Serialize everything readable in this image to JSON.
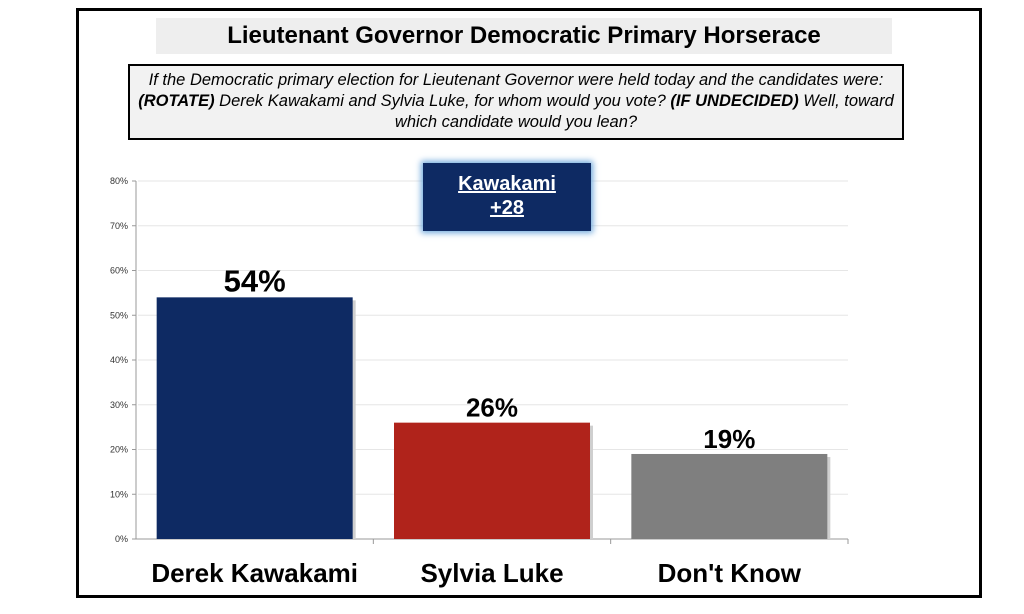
{
  "title": "Lieutenant Governor Democratic Primary Horserace",
  "question": {
    "part1": "If the Democratic primary election for Lieutenant Governor were held today and the candidates were: ",
    "rotate": "(ROTATE)",
    "part2": " Derek Kawakami and Sylvia Luke, for whom would you vote? ",
    "undecided": "(IF UNDECIDED)",
    "part3": " Well, toward which candidate would you lean?"
  },
  "lead_box": {
    "name": "Kawakami",
    "margin": "+28"
  },
  "chart_data": {
    "type": "bar",
    "categories": [
      "Derek Kawakami",
      "Sylvia Luke",
      "Don't Know"
    ],
    "values": [
      54,
      26,
      19
    ],
    "value_labels": [
      "54%",
      "26%",
      "19%"
    ],
    "ylim": [
      0,
      80
    ],
    "yticks": [
      0,
      10,
      20,
      30,
      40,
      50,
      60,
      70,
      80
    ],
    "ytick_labels": [
      "0%",
      "10%",
      "20%",
      "30%",
      "40%",
      "50%",
      "60%",
      "70%",
      "80%"
    ],
    "colors": [
      "#0e2a63",
      "#b0231b",
      "#7f7f7f"
    ],
    "grid": true
  }
}
